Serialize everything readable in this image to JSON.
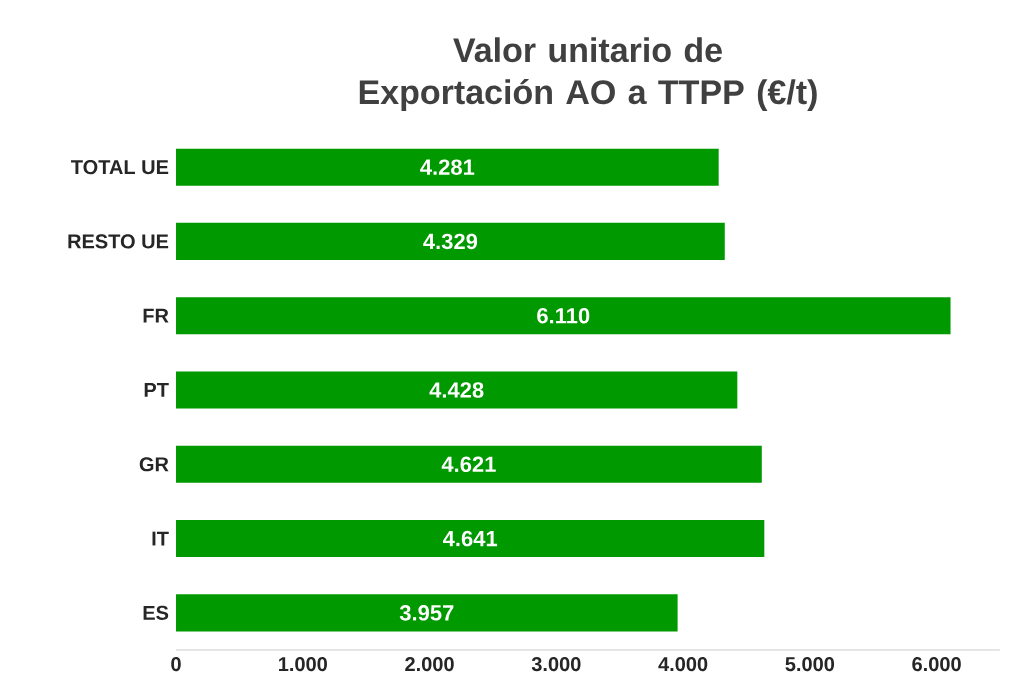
{
  "chart_data": {
    "type": "bar",
    "orientation": "horizontal",
    "title": "Valor unitario de Exportación AO a TTPP (€/t)",
    "categories": [
      "TOTAL UE",
      "RESTO UE",
      "FR",
      "PT",
      "GR",
      "IT",
      "ES"
    ],
    "values": [
      4281,
      4329,
      6110,
      4428,
      4621,
      4641,
      3957
    ],
    "value_labels": [
      "4.281",
      "4.329",
      "6.110",
      "4.428",
      "4.621",
      "4.641",
      "3.957"
    ],
    "color": "#009900",
    "xlim": [
      0,
      6500
    ],
    "xticks": [
      0,
      {
        "value": 1000,
        "label": "1.000"
      },
      {
        "value": 2000,
        "label": "2.000"
      },
      {
        "value": 3000,
        "label": "3.000"
      },
      {
        "value": 4000,
        "label": "4.000"
      },
      {
        "value": 5000,
        "label": "5.000"
      },
      {
        "value": 6000,
        "label": "6.000"
      }
    ]
  }
}
